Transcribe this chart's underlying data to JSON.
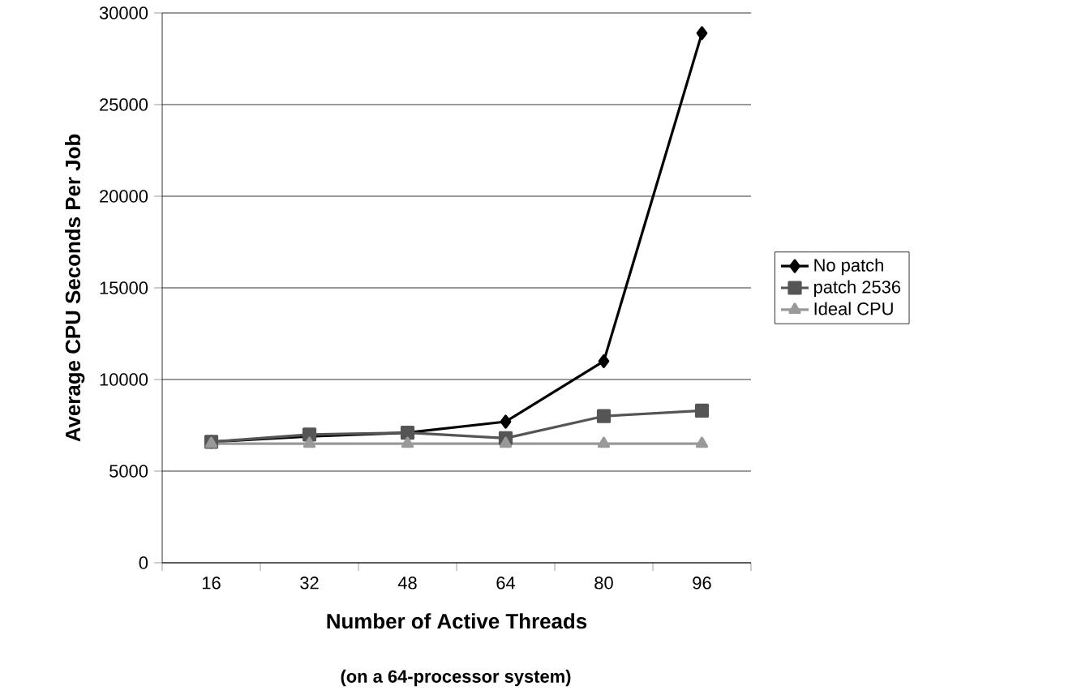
{
  "chart_data": {
    "type": "line",
    "xlabel": "Number of Active Threads",
    "ylabel": "Average CPU Seconds Per Job",
    "annotations": [
      "(on a 64-processor system)"
    ],
    "categories": [
      "16",
      "32",
      "48",
      "64",
      "80",
      "96"
    ],
    "series": [
      {
        "name": "No patch",
        "color": "#000000",
        "marker": "diamond",
        "values": [
          6600,
          6900,
          7100,
          7700,
          11000,
          28900
        ]
      },
      {
        "name": "patch 2536",
        "color": "#555555",
        "marker": "square",
        "values": [
          6600,
          7000,
          7100,
          6800,
          8000,
          8300
        ]
      },
      {
        "name": "Ideal CPU",
        "color": "#999999",
        "marker": "triangle",
        "values": [
          6500,
          6500,
          6500,
          6500,
          6500,
          6500
        ]
      }
    ],
    "ylim": [
      0,
      30000
    ],
    "yticks": [
      0,
      5000,
      10000,
      15000,
      20000,
      25000,
      30000
    ],
    "grid": "y",
    "legend": "right",
    "line_style": "solid"
  }
}
